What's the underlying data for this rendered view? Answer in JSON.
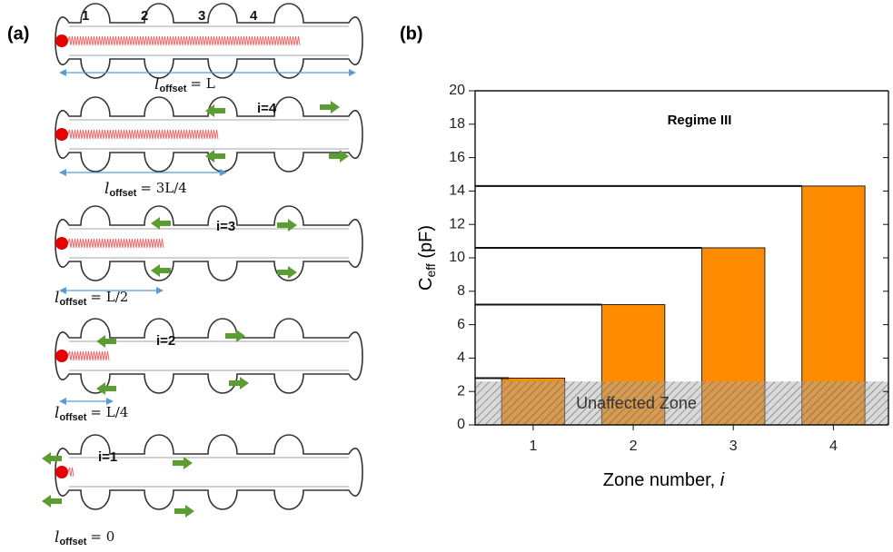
{
  "panel_a": {
    "label": "(a)",
    "zone_numbers": [
      "1",
      "2",
      "3",
      "4"
    ],
    "index_labels": [
      "i=4",
      "i=3",
      "i=2",
      "i=1"
    ],
    "offset_labels": [
      {
        "symbol": "l",
        "subscript": "offset",
        "rest": "= L"
      },
      {
        "symbol": "l",
        "subscript": "offset",
        "rest": "= 3L/4"
      },
      {
        "symbol": "l",
        "subscript": "offset",
        "rest": "= L/2"
      },
      {
        "symbol": "l",
        "subscript": "offset",
        "rest": "= L/4"
      },
      {
        "symbol": "l",
        "subscript": "offset",
        "rest": "= 0"
      }
    ]
  },
  "chart_data": {
    "type": "bar",
    "panel_label": "(b)",
    "annotation": "Regime III",
    "ylabel": {
      "main": "C",
      "subscript": "eff",
      "rest": " (pF)"
    },
    "xlabel": {
      "main": "Zone number, ",
      "italic": "i"
    },
    "categories": [
      "1",
      "2",
      "3",
      "4"
    ],
    "values": [
      2.8,
      7.2,
      10.6,
      14.3
    ],
    "color": "#ff8c00",
    "xlim": [
      0.42,
      4.55
    ],
    "ylim": [
      0,
      20
    ],
    "yticks": [
      0,
      2,
      4,
      6,
      8,
      10,
      12,
      14,
      16,
      18,
      20
    ],
    "unaffected_zone": {
      "label": "Unaffected Zone",
      "range": [
        0,
        2.6
      ]
    }
  }
}
